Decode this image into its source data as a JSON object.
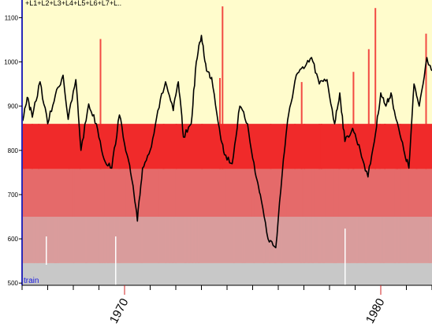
{
  "chart_data": {
    "type": "line",
    "legend_text": "+L1+L2+L3+L4+L5+L6+L7+L..",
    "legend_position": "top-left",
    "annotation": "train",
    "xlim": [
      1966,
      1982
    ],
    "ylim": [
      495,
      1140
    ],
    "y_ticks": [
      500,
      600,
      700,
      800,
      900,
      1000,
      1100
    ],
    "x_ticks": [
      {
        "value": 1970,
        "label": "1970"
      },
      {
        "value": 1980,
        "label": "1980"
      }
    ],
    "grid": false,
    "colors": {
      "plot_background": "#fffccc",
      "line": "#000000",
      "band_1": "#c8c8c8",
      "band_2": "#d99c9c",
      "band_3": "#e56a6a",
      "band_4": "#f02a2a",
      "left_axis": "#2a2ab8",
      "annotation": "#1a1adf"
    },
    "level_bands": [
      {
        "name": "L1",
        "from": 495,
        "to": 545
      },
      {
        "name": "L2",
        "from": 545,
        "to": 650
      },
      {
        "name": "L3",
        "from": 650,
        "to": 758
      },
      {
        "name": "L4",
        "from": 758,
        "to": 860
      }
    ],
    "series": [
      {
        "x": [
          1966.0,
          1966.2,
          1966.4,
          1966.7,
          1967.0,
          1967.3,
          1967.6,
          1967.8,
          1968.1,
          1968.3,
          1968.6,
          1968.9,
          1969.2,
          1969.5,
          1969.8,
          1970.1,
          1970.3,
          1970.5,
          1970.7,
          1971.0,
          1971.3,
          1971.6,
          1971.9,
          1972.1,
          1972.3,
          1972.6,
          1972.8,
          1973.0,
          1973.2,
          1973.4,
          1973.7,
          1973.9,
          1974.2,
          1974.5,
          1974.8,
          1975.1,
          1975.3,
          1975.6,
          1975.9,
          1976.2,
          1976.4,
          1976.7,
          1977.0,
          1977.3,
          1977.6,
          1977.9,
          1978.2,
          1978.4,
          1978.6,
          1978.9,
          1979.2,
          1979.5,
          1979.8,
          1980.0,
          1980.2,
          1980.4,
          1980.6,
          1980.9,
          1981.1,
          1981.3,
          1981.5,
          1981.8,
          1982.0
        ],
        "y": [
          865,
          920,
          875,
          955,
          860,
          925,
          970,
          870,
          960,
          800,
          905,
          860,
          780,
          760,
          880,
          790,
          730,
          640,
          760,
          800,
          890,
          955,
          890,
          955,
          830,
          860,
          1000,
          1060,
          980,
          965,
          850,
          790,
          770,
          900,
          860,
          750,
          700,
          600,
          580,
          780,
          880,
          970,
          985,
          1010,
          950,
          960,
          860,
          930,
          820,
          850,
          800,
          740,
          840,
          930,
          900,
          930,
          870,
          800,
          760,
          950,
          900,
          1010,
          980
        ]
      }
    ]
  }
}
